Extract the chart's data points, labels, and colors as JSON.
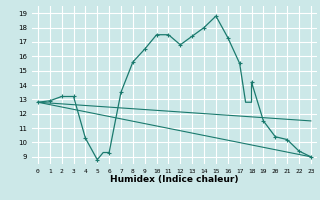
{
  "xlabel": "Humidex (Indice chaleur)",
  "background_color": "#cce8e8",
  "grid_color": "#ffffff",
  "line_color": "#1a7a6e",
  "xlim": [
    -0.5,
    23.5
  ],
  "ylim": [
    8.5,
    19.5
  ],
  "xticks": [
    0,
    1,
    2,
    3,
    4,
    5,
    6,
    7,
    8,
    9,
    10,
    11,
    12,
    13,
    14,
    15,
    16,
    17,
    18,
    19,
    20,
    21,
    22,
    23
  ],
  "yticks": [
    9,
    10,
    11,
    12,
    13,
    14,
    15,
    16,
    17,
    18,
    19
  ],
  "curve_x": [
    0,
    1,
    2,
    3,
    4,
    5,
    5.5,
    6,
    7,
    8,
    9,
    10,
    11,
    12,
    13,
    14,
    15,
    16,
    17,
    17.5,
    18,
    18,
    19,
    20,
    21,
    22,
    23
  ],
  "curve_y": [
    12.8,
    12.9,
    13.2,
    13.2,
    10.3,
    8.8,
    9.3,
    9.3,
    13.5,
    15.6,
    16.5,
    17.5,
    17.5,
    16.8,
    17.4,
    18.0,
    18.8,
    17.3,
    15.5,
    12.8,
    12.8,
    14.2,
    11.5,
    10.4,
    10.2,
    9.4,
    9.0
  ],
  "line1_x": [
    0,
    23
  ],
  "line1_y": [
    12.8,
    9.0
  ],
  "line2_x": [
    0,
    23
  ],
  "line2_y": [
    12.8,
    11.5
  ],
  "marker_x": [
    0,
    1,
    2,
    3,
    4,
    5,
    6,
    7,
    8,
    9,
    10,
    11,
    12,
    13,
    14,
    15,
    16,
    17,
    18,
    19,
    20,
    21,
    22,
    23
  ],
  "marker_y": [
    12.8,
    12.9,
    13.2,
    13.2,
    10.3,
    8.8,
    9.3,
    13.5,
    15.6,
    16.5,
    17.5,
    17.5,
    16.8,
    17.4,
    18.0,
    18.8,
    17.3,
    15.5,
    14.2,
    11.5,
    10.4,
    10.2,
    9.4,
    9.0
  ]
}
